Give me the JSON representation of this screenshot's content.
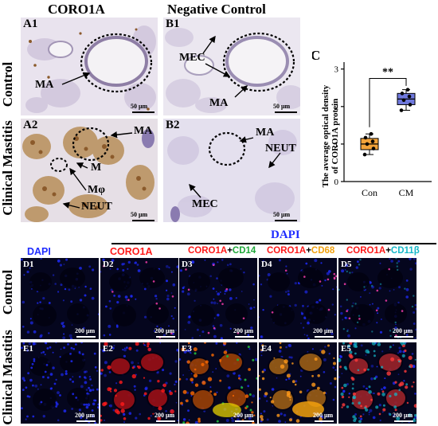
{
  "headers": {
    "col_a": "CORO1A",
    "col_b": "Negative Control",
    "dapi_group": "DAPI"
  },
  "rows": {
    "control": "Control",
    "clinical": "Clinical Mastitis"
  },
  "panels": {
    "a1": "A1",
    "a2": "A2",
    "b1": "B1",
    "b2": "B2",
    "c": "C",
    "d1": "D1",
    "d2": "D2",
    "d3": "D3",
    "d4": "D4",
    "d5": "D5",
    "e1": "E1",
    "e2": "E2",
    "e3": "E3",
    "e4": "E4",
    "e5": "E5"
  },
  "annotations": {
    "ma": "MA",
    "mec": "MEC",
    "neut": "NEUT",
    "m": "M",
    "mphi": "Mφ"
  },
  "scale_bars": {
    "histology": "50 μm",
    "fluorescence": "200 μm"
  },
  "fluor_columns": {
    "d1": [
      {
        "text": "DAPI",
        "color": "#1f2cff"
      }
    ],
    "d2": [
      {
        "text": "CORO1A",
        "color": "#ff1a1a"
      }
    ],
    "d3": [
      {
        "text": "CORO1A",
        "color": "#ff1a1a"
      },
      {
        "text": "+",
        "color": "#000000"
      },
      {
        "text": "CD14",
        "color": "#1fa83a"
      }
    ],
    "d4": [
      {
        "text": "CORO1A",
        "color": "#ff1a1a"
      },
      {
        "text": "+",
        "color": "#000000"
      },
      {
        "text": "CD68",
        "color": "#f2a10d"
      }
    ],
    "d5": [
      {
        "text": "CORO1A",
        "color": "#ff1a1a"
      },
      {
        "text": "+",
        "color": "#000000"
      },
      {
        "text": "CD11β",
        "color": "#16b8c8"
      }
    ]
  },
  "colors": {
    "dapi": "#1f2cff",
    "coro1a": "#ff1a1a",
    "cd14": "#1fa83a",
    "cd68": "#f2a10d",
    "cd11b": "#16b8c8",
    "con_box": "#f2a33a",
    "cm_box": "#6f79dd",
    "histology_bg": "#f0ecf1",
    "he_brown": "#9b6a33"
  },
  "chart_data": {
    "type": "box",
    "ylabel": "The average optical density of CORO1A protein",
    "categories": [
      "Con",
      "CM"
    ],
    "yticks": [
      0,
      1,
      2,
      3
    ],
    "ylim": [
      0,
      3.1
    ],
    "significance": "**",
    "series": [
      {
        "category": "Con",
        "q1": 0.85,
        "median": 1.0,
        "q3": 1.15,
        "whisker_low": 0.72,
        "whisker_high": 1.27,
        "points": [
          0.72,
          0.88,
          1.0,
          1.07,
          1.17,
          1.27
        ]
      },
      {
        "category": "CM",
        "q1": 2.05,
        "median": 2.2,
        "q3": 2.35,
        "whisker_low": 1.9,
        "whisker_high": 2.45,
        "points": [
          1.9,
          2.05,
          2.17,
          2.27,
          2.35,
          2.45
        ]
      }
    ]
  }
}
